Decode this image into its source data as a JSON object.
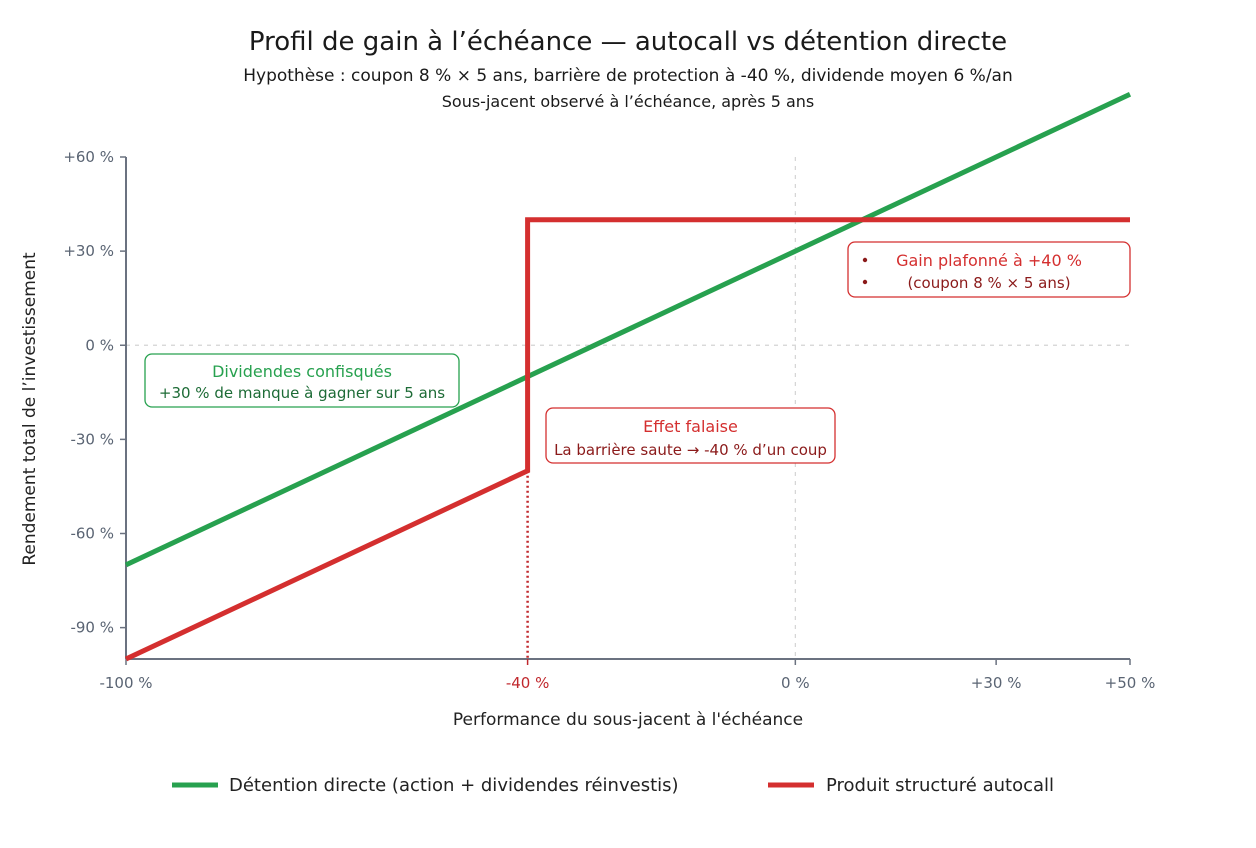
{
  "chart_data": {
    "type": "line",
    "title": "Profil de gain à l’échéance — autocall vs détention directe",
    "subtitle": "Hypothèse : coupon 8 % × 5 ans, barrière de protection à -40 %, dividende moyen 6 %/an",
    "subtitle2": "Sous-jacent observé à l’échéance, après 5 ans",
    "xlabel": "Performance du sous-jacent à l'échéance",
    "ylabel": "Rendement total de l’investissement",
    "xlim": [
      -100,
      50
    ],
    "ylim": [
      -100,
      60
    ],
    "x_ticks": [
      {
        "value": -100,
        "label": "-100 %"
      },
      {
        "value": -40,
        "label": "-40 %"
      },
      {
        "value": 0,
        "label": "0 %"
      },
      {
        "value": 30,
        "label": "+30 %"
      },
      {
        "value": 50,
        "label": "+50 %"
      }
    ],
    "y_ticks": [
      {
        "value": 60,
        "label": "+60 %"
      },
      {
        "value": 30,
        "label": "+30 %"
      },
      {
        "value": 0,
        "label": "0 %"
      },
      {
        "value": -30,
        "label": "-30 %"
      },
      {
        "value": -60,
        "label": "-60 %"
      },
      {
        "value": -90,
        "label": "-90 %"
      }
    ],
    "series": [
      {
        "name": "Détention directe (action + dividendes réinvestis)",
        "color": "#27a14f",
        "points": [
          [
            -100,
            -70
          ],
          [
            50,
            80
          ]
        ]
      },
      {
        "name": "Produit structuré autocall",
        "color": "#d42f2f",
        "points": [
          [
            -100,
            -100
          ],
          [
            -40,
            -40
          ],
          [
            -40,
            40
          ],
          [
            50,
            40
          ]
        ]
      }
    ],
    "barrier": {
      "x": -40,
      "color": "#c0282d"
    },
    "grid": "dashed at x=0 and y=0",
    "legend_position": "bottom",
    "annotations": [
      {
        "id": "cap",
        "title": "Gain plafonné à +40 %",
        "text": "(coupon 8 % × 5 ans)",
        "color": "#d42f2f",
        "text_color": "#8b1a1a"
      },
      {
        "id": "dividends",
        "title": "Dividendes confisqués",
        "text": "+30 % de manque à gagner sur 5 ans",
        "color": "#27a14f",
        "text_color": "#1d6b36"
      },
      {
        "id": "cliff",
        "title": "Effet falaise",
        "text": "La barrière saute → -40 % d’un coup",
        "color": "#d42f2f",
        "text_color": "#8b1a1a"
      }
    ]
  }
}
